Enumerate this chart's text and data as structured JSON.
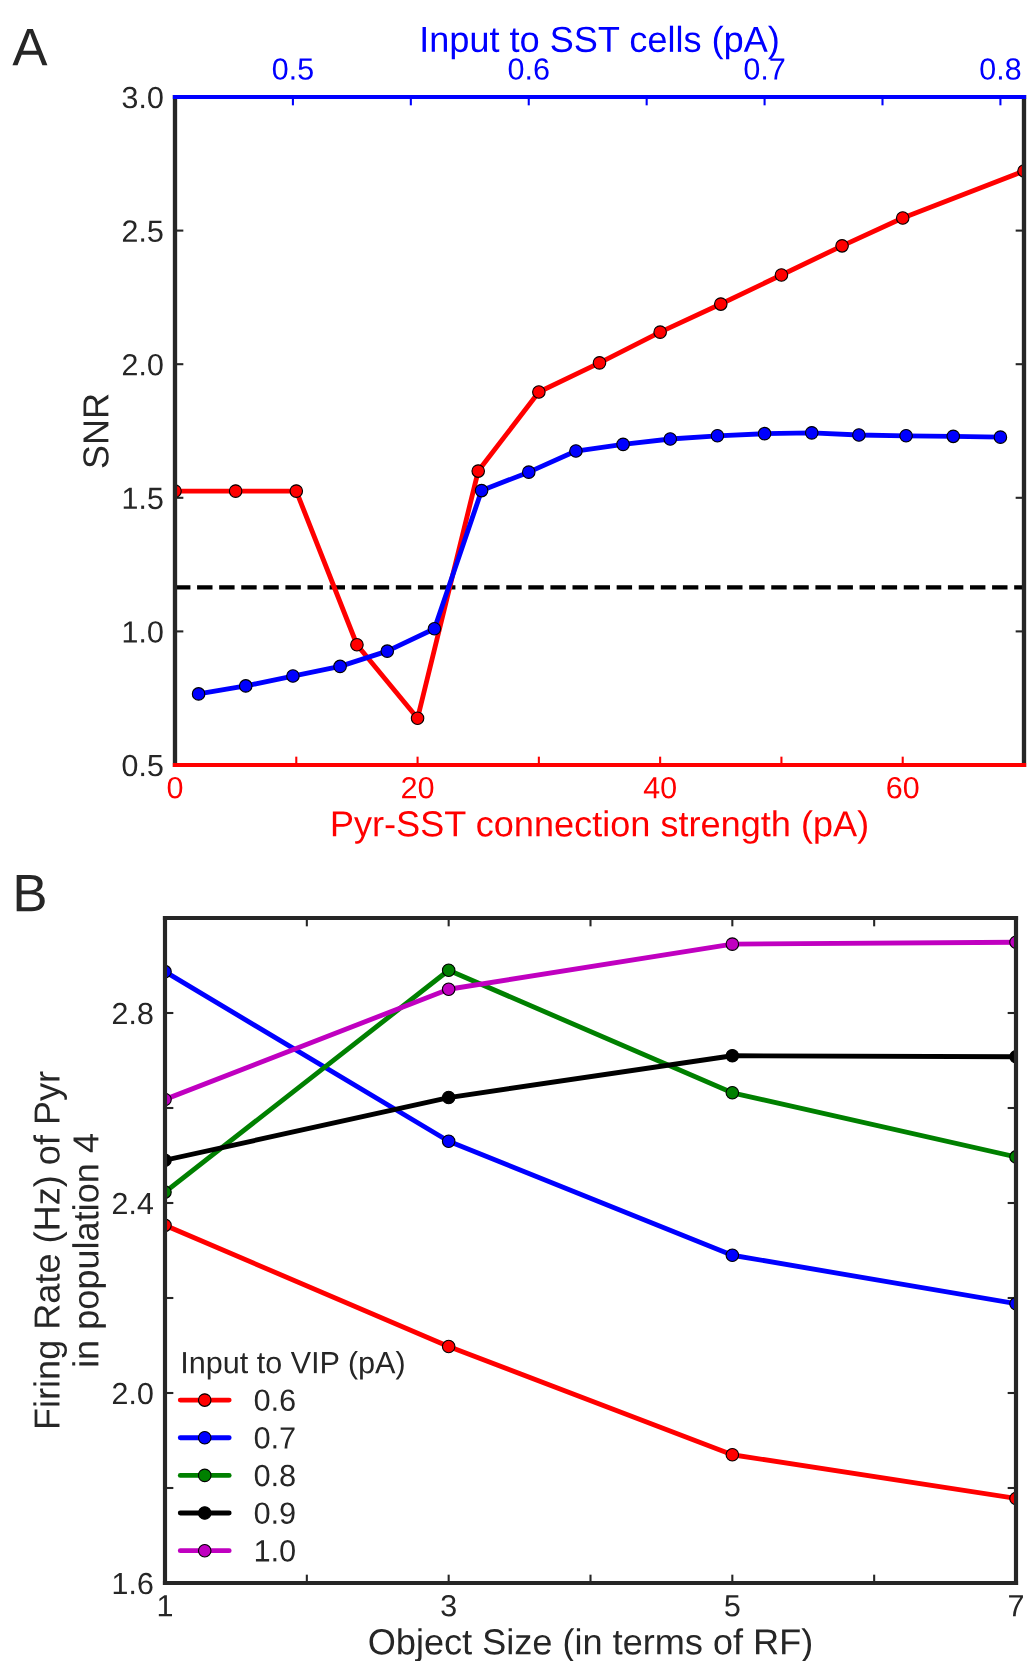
{
  "chart_data": [
    {
      "type": "line",
      "annotations": [
        "A"
      ],
      "ylabel": "SNR",
      "xlabel": "Pyr-SST connection strength (pA)",
      "x2label": "Input to SST cells (pA)",
      "xlim": [
        0,
        70
      ],
      "xticks": [
        0,
        {
          "value": 10,
          "label": null
        },
        20,
        {
          "value": 30,
          "label": null
        },
        40,
        {
          "value": 50,
          "label": null
        },
        60
      ],
      "x2lim": [
        0.45,
        0.81
      ],
      "x2ticks": [
        0.5,
        {
          "value": 0.55,
          "label": null
        },
        0.6,
        {
          "value": 0.65,
          "label": null
        },
        0.7,
        {
          "value": 0.75,
          "label": null
        },
        0.8
      ],
      "ylim": [
        0.5,
        3.0
      ],
      "yticks": [
        {
          "value": 0.5,
          "label": "0.5"
        },
        {
          "value": 1.0,
          "label": "1.0"
        },
        {
          "value": 1.5,
          "label": "1.5"
        },
        {
          "value": 2.0,
          "label": "2.0"
        },
        {
          "value": 2.5,
          "label": "2.5"
        },
        {
          "value": 3.0,
          "label": "3.0"
        }
      ],
      "grid": false,
      "marker": "circle",
      "line_style": "solid",
      "ref_lines": [
        {
          "axis": "y",
          "value": 1.165,
          "color": "#000000",
          "line_style": "dashed"
        }
      ],
      "series": [
        {
          "color": "#ff0000",
          "x": [
            0,
            5,
            10,
            15,
            20,
            25,
            30,
            35,
            40,
            45,
            50,
            55,
            60,
            70
          ],
          "values": [
            1.525,
            1.525,
            1.525,
            0.95,
            0.675,
            1.6,
            1.896,
            2.005,
            2.12,
            2.225,
            2.334,
            2.443,
            2.547,
            2.723
          ]
        },
        {
          "color": "#0000ff",
          "axis": "x2",
          "x": [
            0.46,
            0.48,
            0.5,
            0.52,
            0.54,
            0.56,
            0.58,
            0.6,
            0.62,
            0.64,
            0.66,
            0.68,
            0.7,
            0.72,
            0.74,
            0.76,
            0.78,
            0.8
          ],
          "values": [
            0.766,
            0.796,
            0.833,
            0.869,
            0.926,
            1.01,
            1.527,
            1.596,
            1.675,
            1.7,
            1.72,
            1.732,
            1.74,
            1.743,
            1.735,
            1.732,
            1.73,
            1.727
          ]
        }
      ]
    },
    {
      "type": "line",
      "annotations": [
        "B"
      ],
      "xlabel": "Object Size (in terms of RF)",
      "ylabel": "Firing Rate (Hz) of Pyr\nin population 4",
      "legend_title": "Input to VIP (pA)",
      "legend": "bottom left",
      "xlim": [
        1,
        7
      ],
      "xticks": [
        1,
        {
          "value": 2,
          "label": null
        },
        3,
        {
          "value": 4,
          "label": null
        },
        5,
        {
          "value": 6,
          "label": null
        },
        7
      ],
      "ylim": [
        1.6,
        3.0
      ],
      "yticks": [
        1.6,
        {
          "value": 1.8,
          "label": null
        },
        {
          "value": 2.0,
          "label": "2.0"
        },
        {
          "value": 2.2,
          "label": null
        },
        2.4,
        {
          "value": 2.6,
          "label": null
        },
        2.8
      ],
      "grid": false,
      "marker": "circle",
      "line_style": "solid",
      "x": [
        1,
        3,
        5,
        7
      ],
      "series": [
        {
          "name": "0.6",
          "color": "#ff0000",
          "values": [
            2.353,
            2.098,
            1.87,
            1.778
          ]
        },
        {
          "name": "0.7",
          "color": "#0000ff",
          "values": [
            2.887,
            2.53,
            2.29,
            2.188
          ]
        },
        {
          "name": "0.8",
          "color": "#008000",
          "values": [
            2.423,
            2.89,
            2.632,
            2.497
          ]
        },
        {
          "name": "0.9",
          "color": "#000000",
          "values": [
            2.49,
            2.622,
            2.71,
            2.708
          ]
        },
        {
          "name": "1.0",
          "color": "#c000c0",
          "values": [
            2.618,
            2.85,
            2.945,
            2.949
          ]
        }
      ]
    }
  ]
}
